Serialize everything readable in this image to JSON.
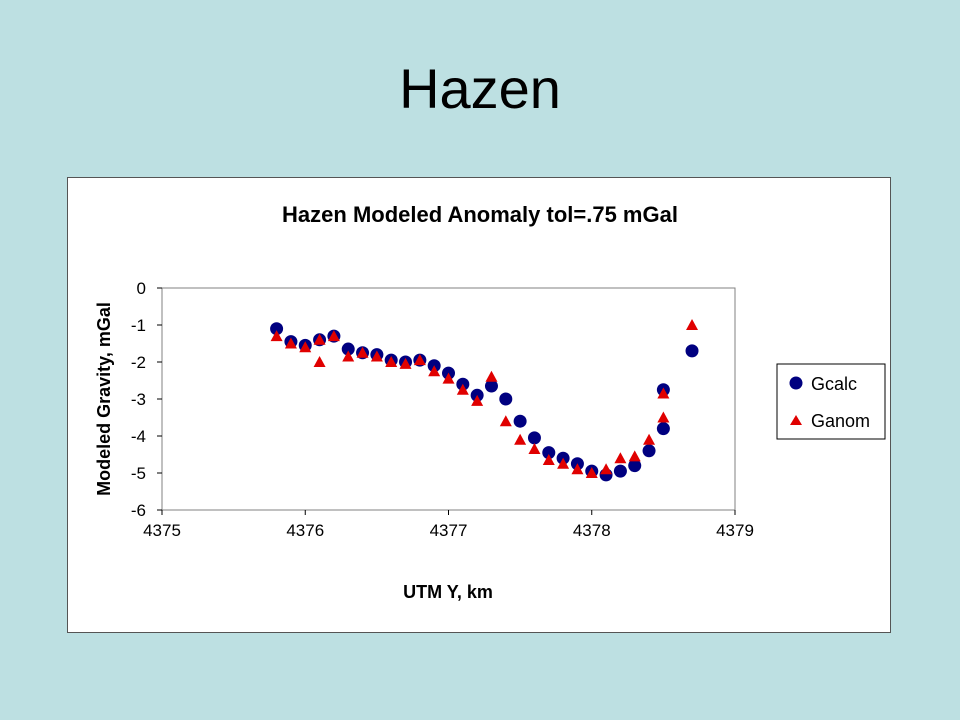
{
  "slide": {
    "title": "Hazen"
  },
  "chart_data": {
    "type": "scatter",
    "title": "Hazen Modeled Anomaly tol=.75 mGal",
    "xlabel": "UTM Y, km",
    "ylabel": "Modeled Gravity, mGal",
    "xlim": [
      4375,
      4379
    ],
    "ylim": [
      -6,
      0
    ],
    "xticks": [
      "4375",
      "4376",
      "4377",
      "4378",
      "4379"
    ],
    "yticks": [
      "0",
      "-1",
      "-2",
      "-3",
      "-4",
      "-5",
      "-6"
    ],
    "grid": false,
    "legend_position": "right",
    "series": [
      {
        "name": "Gcalc",
        "marker": "circle",
        "color": "#000080",
        "x": [
          4375.8,
          4375.9,
          4376.0,
          4376.1,
          4376.2,
          4376.3,
          4376.4,
          4376.5,
          4376.6,
          4376.7,
          4376.8,
          4376.9,
          4377.0,
          4377.1,
          4377.2,
          4377.3,
          4377.4,
          4377.5,
          4377.6,
          4377.7,
          4377.8,
          4377.9,
          4378.0,
          4378.1,
          4378.2,
          4378.3,
          4378.4,
          4378.5,
          4378.5,
          4378.7
        ],
        "y": [
          -1.1,
          -1.45,
          -1.55,
          -1.4,
          -1.3,
          -1.65,
          -1.75,
          -1.8,
          -1.95,
          -2.0,
          -1.95,
          -2.1,
          -2.3,
          -2.6,
          -2.9,
          -2.65,
          -3.0,
          -3.6,
          -4.05,
          -4.45,
          -4.6,
          -4.75,
          -4.95,
          -5.05,
          -4.95,
          -4.8,
          -4.4,
          -3.8,
          -2.75,
          -1.7
        ]
      },
      {
        "name": "Ganom",
        "marker": "triangle",
        "color": "#e00000",
        "x": [
          4375.8,
          4375.9,
          4376.0,
          4376.1,
          4376.1,
          4376.2,
          4376.3,
          4376.4,
          4376.5,
          4376.6,
          4376.7,
          4376.8,
          4376.9,
          4377.0,
          4377.1,
          4377.2,
          4377.3,
          4377.4,
          4377.5,
          4377.6,
          4377.7,
          4377.8,
          4377.9,
          4378.0,
          4378.1,
          4378.2,
          4378.3,
          4378.4,
          4378.5,
          4378.5,
          4378.7
        ],
        "y": [
          -1.3,
          -1.5,
          -1.6,
          -1.4,
          -2.0,
          -1.3,
          -1.85,
          -1.75,
          -1.85,
          -2.0,
          -2.05,
          -1.95,
          -2.25,
          -2.45,
          -2.75,
          -3.05,
          -2.4,
          -3.6,
          -4.1,
          -4.35,
          -4.65,
          -4.75,
          -4.9,
          -5.0,
          -4.9,
          -4.6,
          -4.55,
          -4.1,
          -3.5,
          -2.85,
          -1.0
        ]
      }
    ]
  }
}
